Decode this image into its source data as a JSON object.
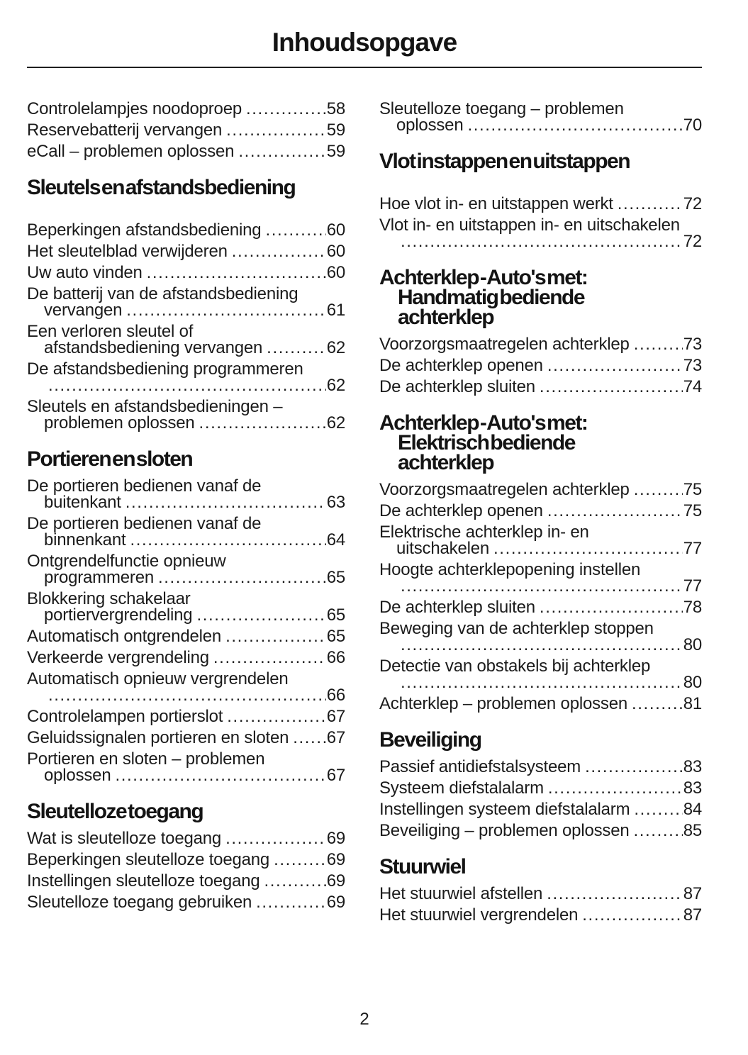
{
  "page": {
    "title": "Inhoudsopgave",
    "page_number": "2"
  },
  "columns": [
    {
      "name": "left",
      "blocks": [
        {
          "type": "entries",
          "items": [
            {
              "lines": [
                "Controlelampjes noodoproep"
              ],
              "page": "58"
            },
            {
              "lines": [
                "Reservebatterij vervangen"
              ],
              "page": "59"
            },
            {
              "lines": [
                "eCall – problemen oplossen"
              ],
              "page": "59"
            }
          ]
        },
        {
          "type": "heading",
          "lines": [
            "Sleutels en afstandsbediening"
          ],
          "space_after": true
        },
        {
          "type": "entries",
          "items": [
            {
              "lines": [
                "Beperkingen afstandsbediening"
              ],
              "page": "60"
            },
            {
              "lines": [
                "Het sleutelblad verwijderen"
              ],
              "page": "60"
            },
            {
              "lines": [
                "Uw auto vinden"
              ],
              "page": "60"
            },
            {
              "lines": [
                "De batterij van de afstandsbediening",
                "vervangen"
              ],
              "page": "61"
            },
            {
              "lines": [
                "Een verloren sleutel of",
                "afstandsbediening vervangen"
              ],
              "page": "62"
            },
            {
              "lines": [
                "De afstandsbediening programmeren",
                ""
              ],
              "page": "62"
            },
            {
              "lines": [
                "Sleutels en afstandsbedieningen –",
                "problemen oplossen"
              ],
              "page": "62"
            }
          ]
        },
        {
          "type": "heading",
          "lines": [
            "Portieren en sloten"
          ]
        },
        {
          "type": "entries",
          "items": [
            {
              "lines": [
                "De portieren bedienen vanaf de",
                "buitenkant"
              ],
              "page": "63"
            },
            {
              "lines": [
                "De portieren bedienen vanaf de",
                "binnenkant"
              ],
              "page": "64"
            },
            {
              "lines": [
                "Ontgrendelfunctie opnieuw",
                "programmeren"
              ],
              "page": "65"
            },
            {
              "lines": [
                "Blokkering schakelaar",
                "portiervergrendeling"
              ],
              "page": "65"
            },
            {
              "lines": [
                "Automatisch ontgrendelen"
              ],
              "page": "65"
            },
            {
              "lines": [
                "Verkeerde vergrendeling"
              ],
              "page": "66"
            },
            {
              "lines": [
                "Automatisch opnieuw vergrendelen",
                ""
              ],
              "page": "66"
            },
            {
              "lines": [
                "Controlelampen portierslot"
              ],
              "page": "67"
            },
            {
              "lines": [
                "Geluidssignalen portieren en sloten"
              ],
              "page": "67"
            },
            {
              "lines": [
                "Portieren en sloten – problemen",
                "oplossen"
              ],
              "page": "67"
            }
          ]
        },
        {
          "type": "heading",
          "lines": [
            "Sleutelloze toegang"
          ]
        },
        {
          "type": "entries",
          "items": [
            {
              "lines": [
                "Wat is sleutelloze toegang"
              ],
              "page": "69"
            },
            {
              "lines": [
                "Beperkingen sleutelloze toegang"
              ],
              "page": "69"
            },
            {
              "lines": [
                "Instellingen sleutelloze toegang"
              ],
              "page": "69"
            },
            {
              "lines": [
                "Sleutelloze toegang gebruiken"
              ],
              "page": "69"
            }
          ]
        }
      ]
    },
    {
      "name": "right",
      "blocks": [
        {
          "type": "entries",
          "items": [
            {
              "lines": [
                "Sleutelloze toegang – problemen",
                "oplossen"
              ],
              "page": "70"
            }
          ]
        },
        {
          "type": "heading",
          "lines": [
            "Vlot instappen en uitstappen"
          ],
          "space_after": true
        },
        {
          "type": "entries",
          "items": [
            {
              "lines": [
                "Hoe vlot in- en uitstappen werkt"
              ],
              "page": "72"
            },
            {
              "lines": [
                "Vlot in- en uitstappen in- en uitschakelen",
                ""
              ],
              "page": "72"
            }
          ]
        },
        {
          "type": "heading",
          "lines": [
            "Achterklep - Auto's met:",
            "Handmatig bediende",
            "achterklep"
          ]
        },
        {
          "type": "entries",
          "items": [
            {
              "lines": [
                "Voorzorgsmaatregelen achterklep"
              ],
              "page": "73"
            },
            {
              "lines": [
                "De achterklep openen"
              ],
              "page": "73"
            },
            {
              "lines": [
                "De achterklep sluiten"
              ],
              "page": "74"
            }
          ]
        },
        {
          "type": "heading",
          "lines": [
            "Achterklep - Auto's met:",
            "Elektrisch bediende",
            "achterklep"
          ]
        },
        {
          "type": "entries",
          "items": [
            {
              "lines": [
                "Voorzorgsmaatregelen achterklep"
              ],
              "page": "75"
            },
            {
              "lines": [
                "De achterklep openen"
              ],
              "page": "75"
            },
            {
              "lines": [
                "Elektrische achterklep in- en",
                "uitschakelen"
              ],
              "page": "77"
            },
            {
              "lines": [
                "Hoogte achterklepopening instellen",
                ""
              ],
              "page": "77"
            },
            {
              "lines": [
                "De achterklep sluiten"
              ],
              "page": "78"
            },
            {
              "lines": [
                "Beweging van de achterklep stoppen",
                ""
              ],
              "page": "80"
            },
            {
              "lines": [
                "Detectie van obstakels bij achterklep",
                ""
              ],
              "page": "80"
            },
            {
              "lines": [
                "Achterklep – problemen oplossen"
              ],
              "page": "81"
            }
          ]
        },
        {
          "type": "heading",
          "lines": [
            "Beveiliging"
          ]
        },
        {
          "type": "entries",
          "items": [
            {
              "lines": [
                "Passief antidiefstalsysteem"
              ],
              "page": "83"
            },
            {
              "lines": [
                "Systeem diefstalalarm"
              ],
              "page": "83"
            },
            {
              "lines": [
                "Instellingen systeem diefstalalarm"
              ],
              "page": "84"
            },
            {
              "lines": [
                "Beveiliging – problemen oplossen"
              ],
              "page": "85"
            }
          ]
        },
        {
          "type": "heading",
          "lines": [
            "Stuurwiel"
          ]
        },
        {
          "type": "entries",
          "items": [
            {
              "lines": [
                "Het stuurwiel afstellen"
              ],
              "page": "87"
            },
            {
              "lines": [
                "Het stuurwiel vergrendelen"
              ],
              "page": "87"
            }
          ]
        }
      ]
    }
  ]
}
